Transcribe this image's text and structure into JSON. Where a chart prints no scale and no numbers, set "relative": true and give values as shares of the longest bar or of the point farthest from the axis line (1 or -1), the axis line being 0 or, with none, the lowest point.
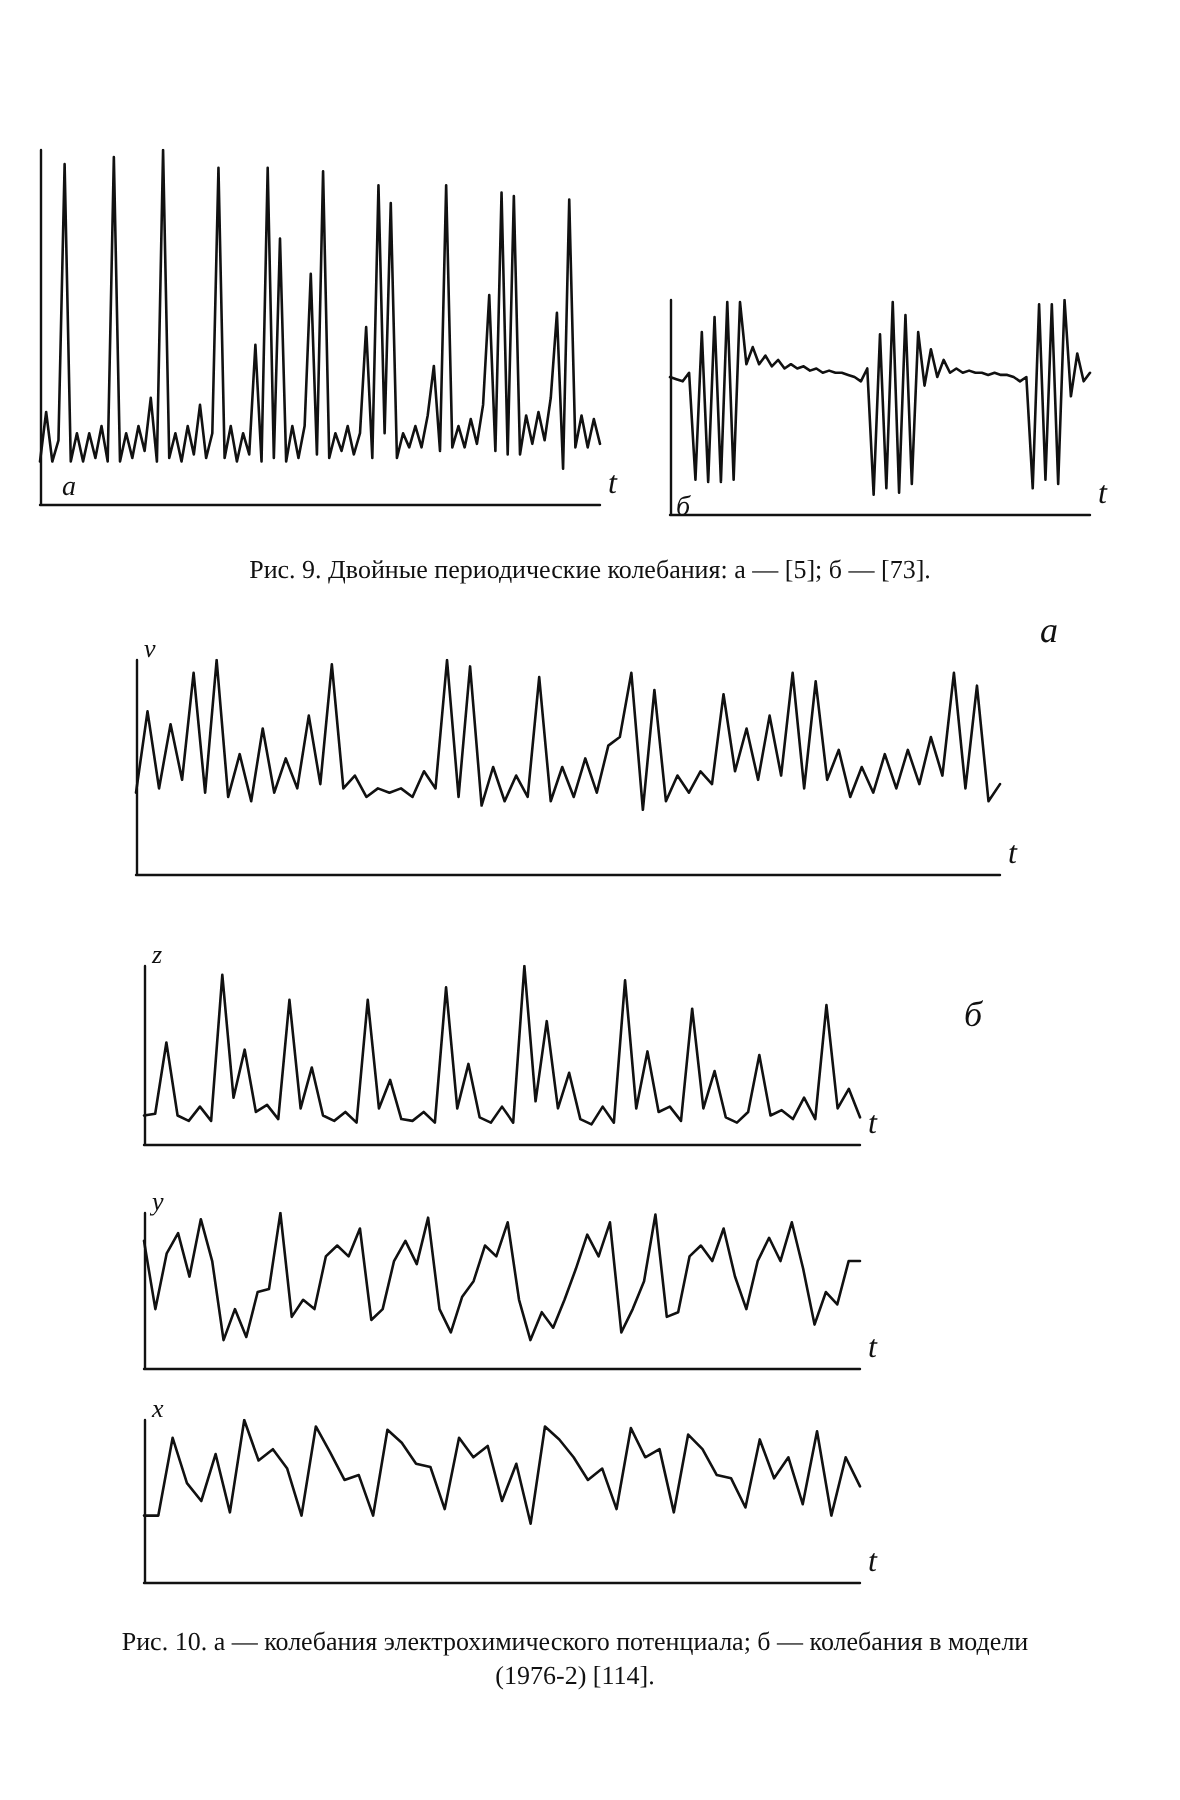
{
  "chart_data": [
    {
      "type": "line",
      "relative": true,
      "xlabel": "t",
      "annotations": [
        "а"
      ],
      "grid": false,
      "line_style": "solid",
      "categories": [
        null,
        null,
        null,
        null,
        null,
        null,
        null,
        null,
        null,
        null,
        null,
        null,
        null,
        null,
        null,
        null,
        null,
        null,
        null,
        null,
        null,
        null,
        null,
        null,
        null,
        null,
        null,
        null,
        null,
        null,
        null,
        null,
        null,
        null,
        null,
        null,
        null,
        null,
        null,
        null,
        null,
        null,
        null,
        null,
        null,
        null,
        null,
        null,
        null,
        null,
        null,
        null,
        null,
        null,
        null,
        null,
        null,
        null,
        null,
        null,
        null,
        null,
        null,
        null,
        null,
        null,
        null,
        null,
        null,
        null,
        null,
        null,
        null,
        null,
        null,
        null,
        null,
        null,
        null,
        null,
        null,
        null,
        null,
        null,
        null,
        null,
        null,
        null,
        null,
        null,
        null,
        null
      ],
      "series": [
        {
          "color": "#111111",
          "values": [
            0.12,
            0.26,
            0.12,
            0.18,
            0.96,
            0.12,
            0.2,
            0.12,
            0.2,
            0.13,
            0.22,
            0.12,
            0.98,
            0.12,
            0.2,
            0.13,
            0.22,
            0.15,
            0.3,
            0.12,
            1.0,
            0.13,
            0.2,
            0.12,
            0.22,
            0.14,
            0.28,
            0.13,
            0.2,
            0.95,
            0.13,
            0.22,
            0.12,
            0.2,
            0.14,
            0.45,
            0.12,
            0.95,
            0.13,
            0.75,
            0.12,
            0.22,
            0.13,
            0.22,
            0.65,
            0.14,
            0.94,
            0.13,
            0.2,
            0.15,
            0.22,
            0.14,
            0.2,
            0.5,
            0.13,
            0.9,
            0.2,
            0.85,
            0.13,
            0.2,
            0.16,
            0.22,
            0.16,
            0.25,
            0.39,
            0.15,
            0.9,
            0.16,
            0.22,
            0.16,
            0.24,
            0.17,
            0.28,
            0.59,
            0.15,
            0.88,
            0.14,
            0.87,
            0.14,
            0.25,
            0.17,
            0.26,
            0.18,
            0.3,
            0.54,
            0.1,
            0.86,
            0.16,
            0.25,
            0.16,
            0.24,
            0.17
          ]
        }
      ]
    },
    {
      "type": "line",
      "relative": true,
      "xlabel": "t",
      "annotations": [
        "б",
        "Рис. 9. Двойные периодические колебания: а — [5]; б — [73]."
      ],
      "grid": false,
      "line_style": "solid",
      "categories": [
        null,
        null,
        null,
        null,
        null,
        null,
        null,
        null,
        null,
        null,
        null,
        null,
        null,
        null,
        null,
        null,
        null,
        null,
        null,
        null,
        null,
        null,
        null,
        null,
        null,
        null,
        null,
        null,
        null,
        null,
        null,
        null,
        null,
        null,
        null,
        null,
        null,
        null,
        null,
        null,
        null,
        null,
        null,
        null,
        null,
        null,
        null,
        null,
        null,
        null,
        null,
        null,
        null,
        null,
        null,
        null,
        null,
        null,
        null,
        null,
        null,
        null,
        null,
        null,
        null,
        null,
        null
      ],
      "series": [
        {
          "color": "#111111",
          "values": [
            0.64,
            0.63,
            0.62,
            0.66,
            0.16,
            0.85,
            0.15,
            0.92,
            0.15,
            0.99,
            0.16,
            0.99,
            0.7,
            0.78,
            0.7,
            0.74,
            0.69,
            0.72,
            0.68,
            0.7,
            0.68,
            0.69,
            0.67,
            0.68,
            0.66,
            0.67,
            0.66,
            0.66,
            0.65,
            0.64,
            0.62,
            0.68,
            0.09,
            0.84,
            0.12,
            0.99,
            0.1,
            0.93,
            0.14,
            0.85,
            0.6,
            0.77,
            0.64,
            0.72,
            0.66,
            0.68,
            0.66,
            0.67,
            0.66,
            0.66,
            0.65,
            0.66,
            0.65,
            0.65,
            0.64,
            0.62,
            0.64,
            0.12,
            0.98,
            0.16,
            0.98,
            0.14,
            1.0,
            0.55,
            0.75,
            0.62,
            0.66
          ]
        }
      ]
    },
    {
      "type": "line",
      "relative": true,
      "xlabel": "t",
      "ylabel": "v",
      "annotations": [
        "а"
      ],
      "grid": false,
      "line_style": "solid",
      "categories": [
        null,
        null,
        null,
        null,
        null,
        null,
        null,
        null,
        null,
        null,
        null,
        null,
        null,
        null,
        null,
        null,
        null,
        null,
        null,
        null,
        null,
        null,
        null,
        null,
        null,
        null,
        null,
        null,
        null,
        null,
        null,
        null,
        null,
        null,
        null,
        null,
        null,
        null,
        null,
        null,
        null,
        null,
        null,
        null,
        null,
        null,
        null,
        null,
        null,
        null,
        null,
        null,
        null,
        null,
        null,
        null,
        null,
        null,
        null,
        null,
        null,
        null,
        null,
        null,
        null,
        null,
        null,
        null,
        null,
        null,
        null,
        null,
        null,
        null,
        null,
        null
      ],
      "series": [
        {
          "color": "#111111",
          "values": [
            0.38,
            0.76,
            0.4,
            0.7,
            0.44,
            0.94,
            0.38,
            1.0,
            0.36,
            0.56,
            0.34,
            0.68,
            0.38,
            0.54,
            0.4,
            0.74,
            0.42,
            0.98,
            0.4,
            0.46,
            0.36,
            0.4,
            0.38,
            0.4,
            0.36,
            0.48,
            0.4,
            1.0,
            0.36,
            0.97,
            0.32,
            0.5,
            0.34,
            0.46,
            0.36,
            0.92,
            0.34,
            0.5,
            0.36,
            0.54,
            0.38,
            0.6,
            0.64,
            0.94,
            0.3,
            0.86,
            0.34,
            0.46,
            0.38,
            0.48,
            0.42,
            0.84,
            0.48,
            0.68,
            0.44,
            0.74,
            0.46,
            0.94,
            0.4,
            0.9,
            0.44,
            0.58,
            0.36,
            0.5,
            0.38,
            0.56,
            0.4,
            0.58,
            0.42,
            0.64,
            0.46,
            0.94,
            0.4,
            0.88,
            0.34,
            0.42
          ]
        }
      ]
    },
    {
      "type": "line",
      "relative": true,
      "xlabel": "t",
      "ylabel": "z",
      "annotations": [
        "б"
      ],
      "grid": false,
      "line_style": "solid",
      "categories": [
        null,
        null,
        null,
        null,
        null,
        null,
        null,
        null,
        null,
        null,
        null,
        null,
        null,
        null,
        null,
        null,
        null,
        null,
        null,
        null,
        null,
        null,
        null,
        null,
        null,
        null,
        null,
        null,
        null,
        null,
        null,
        null,
        null,
        null,
        null,
        null,
        null,
        null,
        null,
        null,
        null,
        null,
        null,
        null,
        null,
        null,
        null,
        null,
        null,
        null,
        null,
        null,
        null,
        null,
        null,
        null,
        null,
        null,
        null,
        null,
        null,
        null,
        null,
        null,
        null
      ],
      "series": [
        {
          "color": "#111111",
          "values": [
            0.16,
            0.17,
            0.57,
            0.16,
            0.13,
            0.21,
            0.13,
            0.95,
            0.26,
            0.53,
            0.18,
            0.22,
            0.14,
            0.81,
            0.2,
            0.43,
            0.16,
            0.13,
            0.18,
            0.12,
            0.81,
            0.2,
            0.36,
            0.14,
            0.13,
            0.18,
            0.12,
            0.88,
            0.2,
            0.45,
            0.15,
            0.12,
            0.21,
            0.12,
            1.0,
            0.24,
            0.69,
            0.2,
            0.4,
            0.14,
            0.11,
            0.21,
            0.12,
            0.92,
            0.2,
            0.52,
            0.18,
            0.21,
            0.13,
            0.76,
            0.2,
            0.41,
            0.15,
            0.12,
            0.18,
            0.5,
            0.16,
            0.19,
            0.14,
            0.26,
            0.14,
            0.78,
            0.2,
            0.31,
            0.15
          ]
        }
      ]
    },
    {
      "type": "line",
      "relative": true,
      "xlabel": "t",
      "ylabel": "y",
      "grid": false,
      "line_style": "solid",
      "categories": [
        null,
        null,
        null,
        null,
        null,
        null,
        null,
        null,
        null,
        null,
        null,
        null,
        null,
        null,
        null,
        null,
        null,
        null,
        null,
        null,
        null,
        null,
        null,
        null,
        null,
        null,
        null,
        null,
        null,
        null,
        null,
        null,
        null,
        null,
        null,
        null,
        null,
        null,
        null,
        null,
        null,
        null,
        null,
        null,
        null,
        null,
        null,
        null,
        null,
        null,
        null,
        null,
        null,
        null,
        null,
        null,
        null,
        null,
        null,
        null,
        null,
        null,
        null,
        null
      ],
      "series": [
        {
          "color": "#111111",
          "values": [
            0.82,
            0.38,
            0.74,
            0.87,
            0.59,
            0.96,
            0.69,
            0.18,
            0.38,
            0.2,
            0.49,
            0.51,
            1.0,
            0.33,
            0.44,
            0.38,
            0.72,
            0.79,
            0.72,
            0.9,
            0.31,
            0.38,
            0.69,
            0.82,
            0.67,
            0.97,
            0.38,
            0.23,
            0.46,
            0.56,
            0.79,
            0.72,
            0.94,
            0.44,
            0.18,
            0.36,
            0.26,
            0.44,
            0.64,
            0.86,
            0.72,
            0.94,
            0.23,
            0.38,
            0.56,
            0.99,
            0.33,
            0.36,
            0.72,
            0.79,
            0.69,
            0.9,
            0.59,
            0.38,
            0.69,
            0.84,
            0.69,
            0.94,
            0.64,
            0.28,
            0.49,
            0.41,
            0.69,
            0.69
          ]
        }
      ]
    },
    {
      "type": "line",
      "relative": true,
      "xlabel": "t",
      "ylabel": "x",
      "annotations": [
        "Рис. 10. а — колебания электрохимического потенциала; б — колебания в модели (1976-2) [114]."
      ],
      "grid": false,
      "line_style": "solid",
      "categories": [
        null,
        null,
        null,
        null,
        null,
        null,
        null,
        null,
        null,
        null,
        null,
        null,
        null,
        null,
        null,
        null,
        null,
        null,
        null,
        null,
        null,
        null,
        null,
        null,
        null,
        null,
        null,
        null,
        null,
        null,
        null,
        null,
        null,
        null,
        null,
        null,
        null,
        null,
        null,
        null,
        null,
        null,
        null,
        null,
        null,
        null,
        null,
        null,
        null,
        null,
        null
      ],
      "series": [
        {
          "color": "#111111",
          "values": [
            0.41,
            0.41,
            0.89,
            0.61,
            0.5,
            0.79,
            0.43,
            1.0,
            0.75,
            0.82,
            0.7,
            0.41,
            0.96,
            0.8,
            0.63,
            0.66,
            0.41,
            0.94,
            0.86,
            0.73,
            0.71,
            0.45,
            0.89,
            0.77,
            0.84,
            0.5,
            0.73,
            0.36,
            0.96,
            0.88,
            0.77,
            0.63,
            0.7,
            0.45,
            0.95,
            0.77,
            0.82,
            0.43,
            0.91,
            0.82,
            0.66,
            0.64,
            0.46,
            0.88,
            0.64,
            0.77,
            0.48,
            0.93,
            0.41,
            0.77,
            0.59
          ]
        }
      ]
    }
  ]
}
